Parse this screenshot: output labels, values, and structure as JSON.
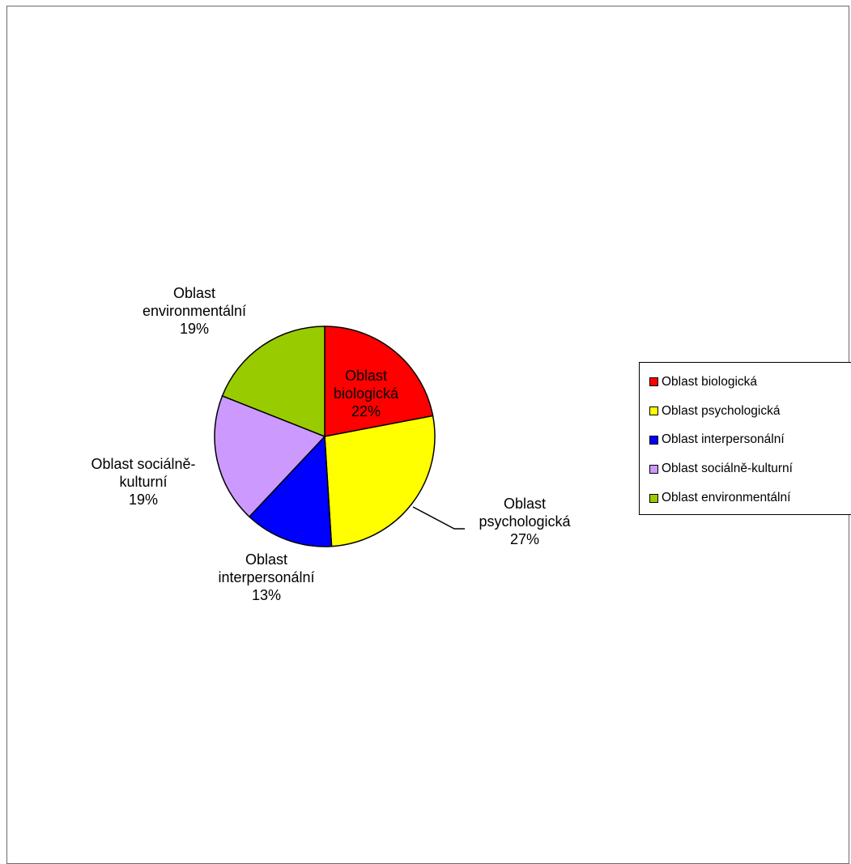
{
  "chart_data": {
    "type": "pie",
    "title": "",
    "slices": [
      {
        "name": "Oblast biologická",
        "value": 22,
        "label_lines": [
          "Oblast",
          "biologická",
          "22%"
        ],
        "color": "#FF0000"
      },
      {
        "name": "Oblast psychologická",
        "value": 27,
        "label_lines": [
          "Oblast",
          "psychologická",
          "27%"
        ],
        "color": "#FFFF00"
      },
      {
        "name": "Oblast interpersonální",
        "value": 13,
        "label_lines": [
          "Oblast",
          "interpersonální",
          "13%"
        ],
        "color": "#0000FF"
      },
      {
        "name": "Oblast sociálně-kulturní",
        "value": 19,
        "label_lines": [
          "Oblast sociálně-",
          "kulturní",
          "19%"
        ],
        "color": "#CC99FF"
      },
      {
        "name": "Oblast environmentální",
        "value": 19,
        "label_lines": [
          "Oblast",
          "environmentální",
          "19%"
        ],
        "color": "#99CC00"
      }
    ],
    "start": "12 o'clock",
    "direction": "clockwise",
    "legend_position": "right"
  }
}
